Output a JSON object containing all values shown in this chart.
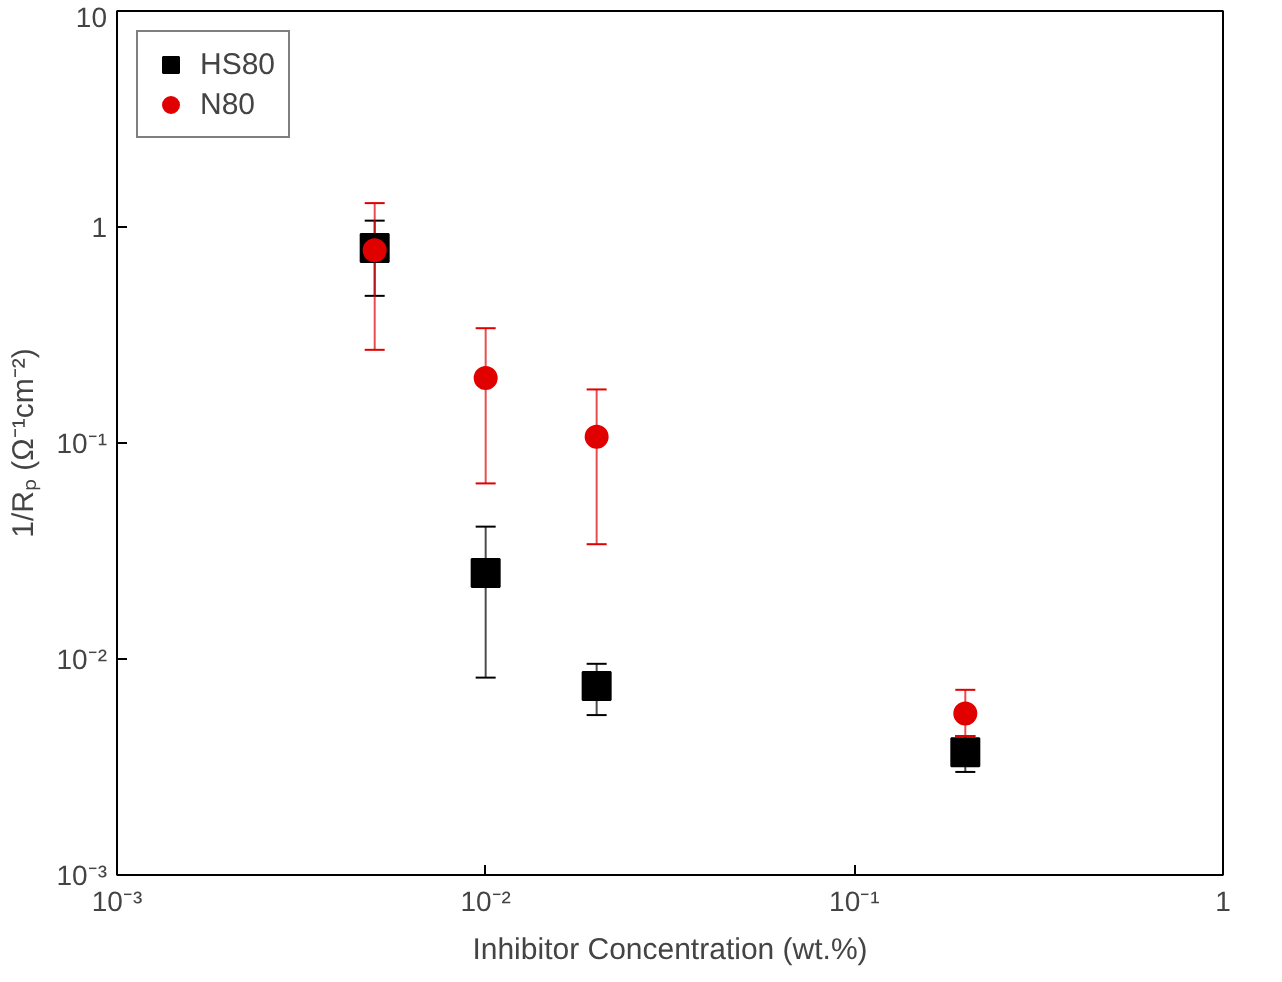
{
  "chart_data": {
    "type": "scatter",
    "xlabel": "Inhibitor Concentration (wt.%)",
    "ylabel": "1/Rₚ (Ω⁻¹cm⁻²)",
    "log": "xy",
    "x": [
      0.005,
      0.01,
      0.02,
      0.2
    ],
    "series": [
      {
        "name": "HS80",
        "color": "#000000",
        "marker": "square",
        "values": [
          0.8,
          0.025,
          0.0075,
          0.0037
        ],
        "errors": [
          [
            0.48,
            1.07
          ],
          [
            0.0082,
            0.041
          ],
          [
            0.0055,
            0.0095
          ],
          [
            0.003,
            0.0044
          ]
        ]
      },
      {
        "name": "N80",
        "color": "#e00000",
        "marker": "circle",
        "values": [
          0.78,
          0.2,
          0.107,
          0.0056
        ],
        "errors": [
          [
            0.27,
            1.29
          ],
          [
            0.065,
            0.34
          ],
          [
            0.034,
            0.177
          ],
          [
            0.0044,
            0.0072
          ]
        ]
      }
    ],
    "xlim": [
      0.001,
      1
    ],
    "ylim": [
      0.001,
      10
    ],
    "xticks": [
      {
        "value": 0.001,
        "label": "10⁻³"
      },
      {
        "value": 0.01,
        "label": "10⁻²"
      },
      {
        "value": 0.1,
        "label": "10⁻¹"
      },
      1
    ],
    "yticks": [
      {
        "value": 0.001,
        "label": "10⁻³"
      },
      {
        "value": 0.01,
        "label": "10⁻²"
      },
      {
        "value": 0.1,
        "label": "10⁻¹"
      },
      1,
      10
    ],
    "grid": false,
    "legend": "top left"
  }
}
